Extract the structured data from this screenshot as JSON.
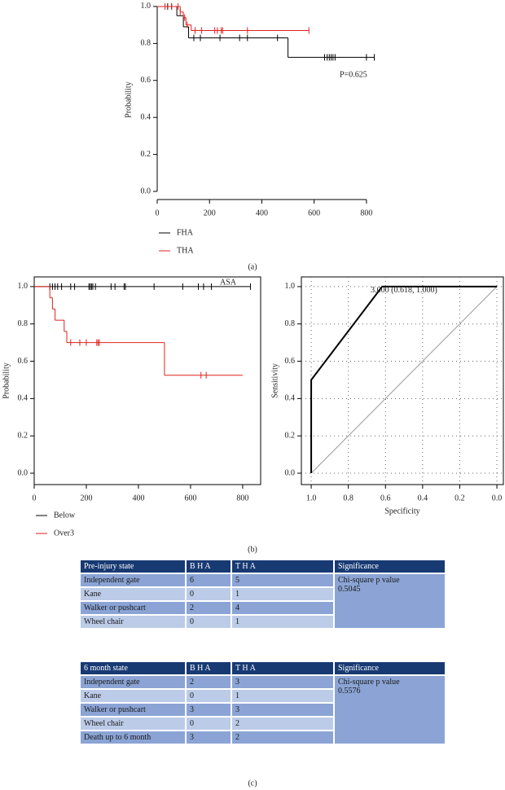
{
  "chart_data": [
    {
      "type": "survival",
      "y_label": "Probability",
      "annotation": "P=0.625",
      "xlim": [
        0,
        847
      ],
      "ylim": [
        -0.044,
        1.035
      ],
      "xticks": [
        0,
        200,
        400,
        600,
        800
      ],
      "yticks": [
        {
          "value": 0,
          "label": "0.0"
        },
        0.2,
        0.4,
        0.6,
        0.8,
        {
          "value": 1,
          "label": "1.0"
        }
      ],
      "grid": false,
      "frame": false,
      "legend": "bottom",
      "series": [
        {
          "name": "FHA",
          "color": "#000000",
          "x": [
            0,
            75,
            100,
            120,
            500,
            830
          ],
          "values": [
            1,
            0.95,
            0.89,
            0.83,
            0.725,
            0.725
          ],
          "censored": [
            40,
            55,
            140,
            165,
            240,
            315,
            345,
            460,
            640,
            650,
            658,
            665,
            672,
            680,
            800,
            830
          ]
        },
        {
          "name": "THA",
          "color": "#e0201b",
          "x": [
            0,
            88,
            100,
            110,
            130,
            580
          ],
          "values": [
            1,
            0.97,
            0.94,
            0.9,
            0.87,
            0.87
          ],
          "censored": [
            30,
            55,
            80,
            88,
            105,
            115,
            145,
            170,
            220,
            230,
            245,
            250,
            345,
            580
          ]
        }
      ]
    },
    {
      "type": "survival",
      "y_label": "Probability",
      "annotation": "ASA",
      "xlim": [
        0,
        869
      ],
      "ylim": [
        -0.061,
        1.052
      ],
      "xticks": [
        0,
        200,
        400,
        600,
        800
      ],
      "yticks": [
        {
          "value": 0,
          "label": "0.0"
        },
        0.2,
        0.4,
        0.6,
        0.8,
        {
          "value": 1,
          "label": "1.0"
        }
      ],
      "grid": false,
      "frame": true,
      "legend": "bottom",
      "series": [
        {
          "name": "Below",
          "color": "#000000",
          "x": [
            0,
            830
          ],
          "values": [
            1,
            1
          ],
          "censored": [
            60,
            70,
            80,
            90,
            105,
            140,
            155,
            210,
            215,
            220,
            225,
            235,
            295,
            310,
            345,
            350,
            460,
            570,
            630,
            650,
            680,
            830
          ]
        },
        {
          "name": "Over3",
          "color": "#e0201b",
          "x": [
            0,
            60,
            70,
            80,
            115,
            125,
            500,
            800
          ],
          "values": [
            1,
            0.94,
            0.88,
            0.82,
            0.76,
            0.7,
            0.525,
            0.525
          ],
          "censored": [
            140,
            175,
            200,
            240,
            245,
            250,
            640,
            660
          ]
        }
      ]
    },
    {
      "type": "line",
      "x_label": "Specificity",
      "y_label": "Sensitivity",
      "annotation": "3.000 (0.618, 1.000)",
      "xlim": [
        1.053,
        -0.035
      ],
      "ylim": [
        -0.061,
        1.052
      ],
      "xticks": [
        {
          "value": 1,
          "label": "1.0"
        },
        0.8,
        0.6,
        0.4,
        0.2,
        {
          "value": 0,
          "label": "0.0"
        }
      ],
      "yticks": [
        {
          "value": 0,
          "label": "0.0"
        },
        0.2,
        0.4,
        0.6,
        0.8,
        {
          "value": 1,
          "label": "1.0"
        }
      ],
      "grid": true,
      "frame": true,
      "series": [
        {
          "color": "#999999",
          "x": [
            1,
            0
          ],
          "values": [
            0,
            1
          ]
        },
        {
          "color": "#000000",
          "x": [
            1,
            1,
            0.618,
            0
          ],
          "values": [
            0,
            0.5,
            1,
            1
          ]
        }
      ]
    }
  ],
  "panel_labels": [
    "(a)",
    "(b)",
    "(c)"
  ],
  "tables": [
    {
      "columns": [
        "Pre-injury state",
        "B H A",
        "T H A",
        "Significance"
      ],
      "rows": [
        [
          "Independent gate",
          "6",
          "5"
        ],
        [
          "Kane",
          "0",
          "1"
        ],
        [
          "Walker or pushcart",
          "2",
          "4"
        ],
        [
          "Wheel chair",
          "0",
          "1"
        ]
      ],
      "significance": [
        "Chi-square p value",
        "0.5045"
      ]
    },
    {
      "columns": [
        "6 month state",
        "B H A",
        "T H A",
        "Significance"
      ],
      "rows": [
        [
          "Independent gate",
          "2",
          "3"
        ],
        [
          "Kane",
          "0",
          "1"
        ],
        [
          "Walker or pushcart",
          "3",
          "3"
        ],
        [
          "Wheel chair",
          "0",
          "2"
        ],
        [
          "Death up to 6 month",
          "3",
          "2"
        ]
      ],
      "significance": [
        "Chi-square p value",
        "0.5576"
      ]
    }
  ]
}
